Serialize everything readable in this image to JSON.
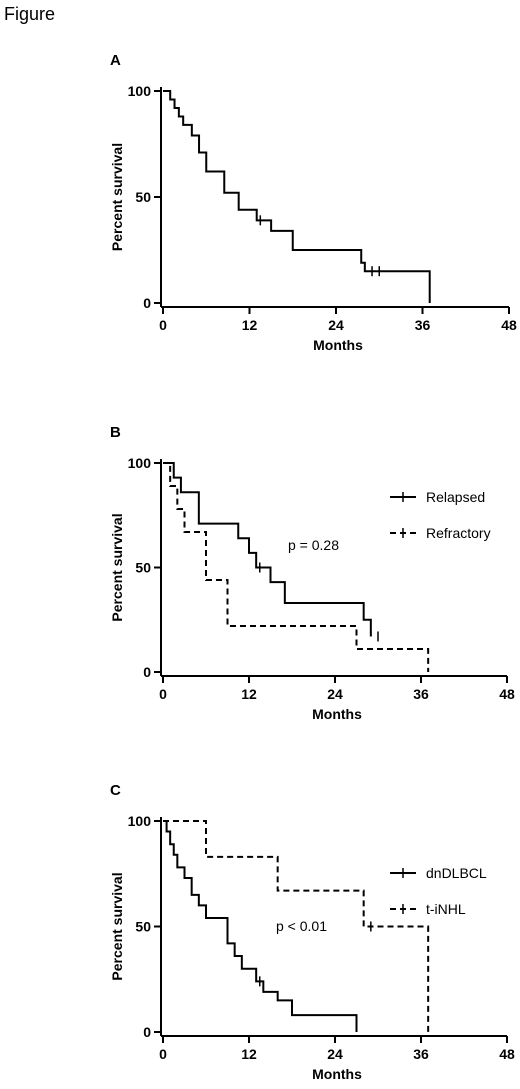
{
  "figure_label": "Figure",
  "chart_data": [
    {
      "panel": "A",
      "type": "line",
      "step": true,
      "xlabel": "Months",
      "ylabel": "Percent survival",
      "xlim": [
        0,
        48
      ],
      "ylim": [
        0,
        100
      ],
      "xticks": [
        0,
        12,
        24,
        36,
        48
      ],
      "yticks": [
        0,
        50,
        100
      ],
      "grid": false,
      "legend": null,
      "annotation": "",
      "series": [
        {
          "name": "",
          "style": "solid",
          "x": [
            0,
            1,
            1.6,
            2.2,
            2.8,
            4,
            5,
            6,
            8.5,
            10.5,
            13,
            15,
            18,
            27.5,
            28,
            37
          ],
          "y": [
            100,
            96,
            92,
            88,
            84,
            79,
            71,
            62,
            52,
            44,
            39,
            34,
            25,
            19,
            15,
            0
          ],
          "censored": [
            {
              "x": 13.5,
              "y": 39
            },
            {
              "x": 29,
              "y": 15
            },
            {
              "x": 30,
              "y": 15
            }
          ]
        }
      ]
    },
    {
      "panel": "B",
      "type": "line",
      "step": true,
      "xlabel": "Months",
      "ylabel": "Percent survival",
      "xlim": [
        0,
        48
      ],
      "ylim": [
        0,
        100
      ],
      "xticks": [
        0,
        12,
        24,
        36,
        48
      ],
      "yticks": [
        0,
        50,
        100
      ],
      "grid": false,
      "legend": "right",
      "annotation": "p = 0.28",
      "series": [
        {
          "name": "Relapsed",
          "style": "solid",
          "x": [
            0,
            1.5,
            2.5,
            5,
            10.5,
            12,
            13,
            15,
            17,
            28,
            29
          ],
          "y": [
            100,
            93,
            86,
            71,
            64,
            57,
            50,
            43,
            33,
            25,
            17
          ],
          "censored": [
            {
              "x": 13.5,
              "y": 50
            },
            {
              "x": 30,
              "y": 17
            }
          ]
        },
        {
          "name": "Refractory",
          "style": "dashed",
          "x": [
            0,
            1,
            2,
            3,
            6,
            9,
            27,
            37
          ],
          "y": [
            100,
            89,
            78,
            67,
            44,
            22,
            11,
            0
          ],
          "censored": []
        }
      ]
    },
    {
      "panel": "C",
      "type": "line",
      "step": true,
      "xlabel": "Months",
      "ylabel": "Percent survival",
      "xlim": [
        0,
        48
      ],
      "ylim": [
        0,
        100
      ],
      "xticks": [
        0,
        12,
        24,
        36,
        48
      ],
      "yticks": [
        0,
        50,
        100
      ],
      "grid": false,
      "legend": "right",
      "annotation": "p < 0.01",
      "series": [
        {
          "name": "dnDLBCL",
          "style": "solid",
          "x": [
            0,
            0.5,
            1,
            1.5,
            2,
            3,
            4,
            5,
            6,
            9,
            10,
            11,
            13,
            14,
            16,
            18,
            27
          ],
          "y": [
            100,
            95,
            89,
            84,
            78,
            73,
            65,
            60,
            54,
            42,
            36,
            30,
            24,
            19,
            15,
            8,
            0
          ],
          "censored": [
            {
              "x": 13.5,
              "y": 24
            }
          ]
        },
        {
          "name": "t-iNHL",
          "style": "dashed",
          "x": [
            0,
            6,
            16,
            28,
            37
          ],
          "y": [
            100,
            83,
            67,
            50,
            0
          ],
          "censored": [
            {
              "x": 29,
              "y": 50
            }
          ]
        }
      ]
    }
  ]
}
